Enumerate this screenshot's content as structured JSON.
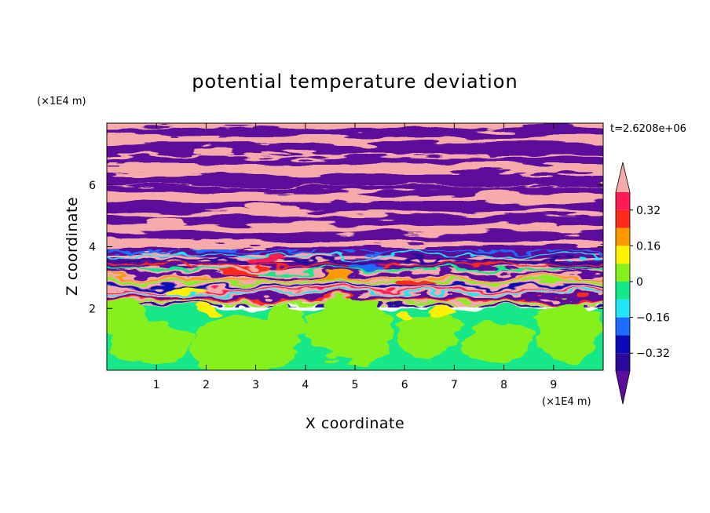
{
  "chart_data": {
    "type": "heatmap",
    "title": "potential temperature deviation",
    "xlabel": "X coordinate",
    "ylabel": "Z coordinate",
    "x_unit": "(×1E4 m)",
    "y_unit": "(×1E4 m)",
    "time_label": "t=2.6208e+06",
    "xlim": [
      0,
      10
    ],
    "ylim": [
      0,
      8
    ],
    "x_ticks": [
      1,
      2,
      3,
      4,
      5,
      6,
      7,
      8,
      9
    ],
    "y_ticks": [
      2,
      4,
      6
    ],
    "colorbar": {
      "levels": [
        -0.4,
        -0.32,
        -0.24,
        -0.16,
        -0.08,
        0,
        0.08,
        0.16,
        0.24,
        0.32,
        0.4
      ],
      "colors": [
        "#5b0e9c",
        "#2a0a9a",
        "#0a0ab8",
        "#1b6cff",
        "#22e5f5",
        "#13e88a",
        "#86f01f",
        "#fff200",
        "#ff9900",
        "#ff2a1a",
        "#ff1a55",
        "#f7aaaa"
      ],
      "labeled_ticks": [
        0.32,
        0.16,
        0,
        -0.16,
        -0.32
      ],
      "labels": [
        "0.32",
        "0.16",
        "0",
        "−0.16",
        "−0.32"
      ]
    },
    "field_description": "Upper layer (z > 2) shows alternating horizontal bands of high (pink) and low (purple) deviation with turbulent mixing near z ≈ 2–4; lower layer (z < 2) is near-neutral (green/lime cells)."
  }
}
